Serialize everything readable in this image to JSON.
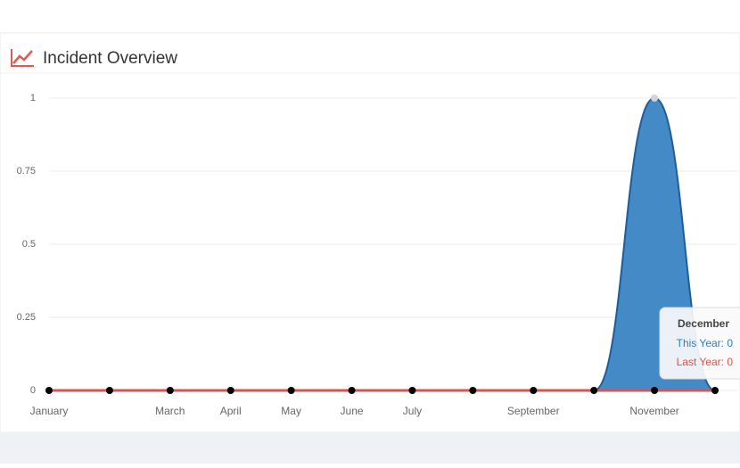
{
  "chart_data": {
    "type": "areaspline",
    "title": "Incident Overview",
    "categories": [
      "January",
      null,
      "March",
      "April",
      "May",
      "June",
      "July",
      null,
      "September",
      null,
      "November",
      null
    ],
    "series": [
      {
        "name": "This Year",
        "color": "#2f7dc0",
        "values": [
          0,
          0,
          0,
          0,
          0,
          0,
          0,
          0,
          0,
          0,
          1,
          0
        ]
      },
      {
        "name": "Last Year",
        "color": "#d9534f",
        "values": [
          0,
          0,
          0,
          0,
          0,
          0,
          0,
          0,
          0,
          0,
          0,
          0
        ]
      }
    ],
    "ylim": [
      0,
      1
    ],
    "yticks": [
      0,
      0.25,
      0.5,
      0.75,
      1
    ],
    "grid": true,
    "tooltip": {
      "title": "December",
      "lines": [
        "This Year: 0",
        "Last Year: 0"
      ]
    }
  }
}
